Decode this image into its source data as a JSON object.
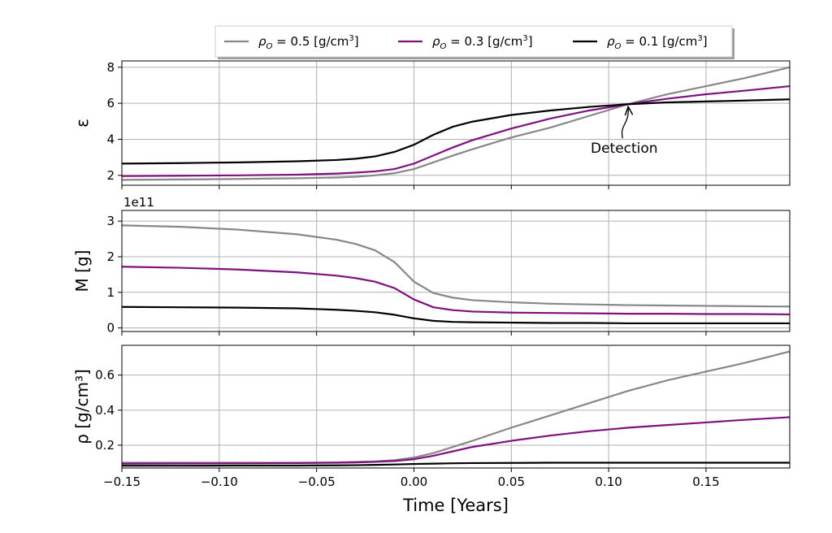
{
  "chart_data": {
    "type": "line",
    "shared_x": {
      "label": "Time [Years]",
      "range": [
        -0.15,
        0.193
      ],
      "ticks": [
        -0.15,
        -0.1,
        -0.05,
        0.0,
        0.05,
        0.1,
        0.15
      ],
      "tick_labels": [
        "−0.15",
        "−0.10",
        "−0.05",
        "0.00",
        "0.05",
        "0.10",
        "0.15"
      ]
    },
    "legend": {
      "placement": "top-center",
      "entries": [
        {
          "series_index": 0,
          "label": "ρ",
          "sub": "O",
          "rest": " = 0.5 [g/cm",
          "sup": "3",
          "close": "]",
          "color": "#878787"
        },
        {
          "series_index": 1,
          "label": "ρ",
          "sub": "O",
          "rest": " = 0.3 [g/cm",
          "sup": "3",
          "close": "]",
          "color": "#800f80"
        },
        {
          "series_index": 2,
          "label": "ρ",
          "sub": "O",
          "rest": " = 0.1 [g/cm",
          "sup": "3",
          "close": "]",
          "color": "#000000"
        }
      ]
    },
    "panels": [
      {
        "ylabel": "ε",
        "ylim": [
          1.45,
          8.35
        ],
        "yticks": [
          2,
          4,
          6,
          8
        ],
        "ytick_labels": [
          "2",
          "4",
          "6",
          "8"
        ],
        "grid": true,
        "annotation": {
          "text": "Detection",
          "point": [
            0.11,
            5.95
          ],
          "text_at": [
            0.108,
            3.25
          ]
        },
        "series": [
          {
            "color": "#878787",
            "x": [
              -0.15,
              -0.12,
              -0.09,
              -0.06,
              -0.04,
              -0.03,
              -0.02,
              -0.01,
              0,
              0.01,
              0.02,
              0.03,
              0.05,
              0.07,
              0.09,
              0.11,
              0.13,
              0.15,
              0.17,
              0.193
            ],
            "y": [
              1.75,
              1.77,
              1.8,
              1.84,
              1.88,
              1.92,
              2.0,
              2.12,
              2.35,
              2.72,
              3.1,
              3.45,
              4.1,
              4.65,
              5.3,
              5.95,
              6.5,
              6.95,
              7.4,
              8.0
            ]
          },
          {
            "color": "#800f80",
            "x": [
              -0.15,
              -0.12,
              -0.09,
              -0.06,
              -0.04,
              -0.03,
              -0.02,
              -0.01,
              0,
              0.01,
              0.02,
              0.03,
              0.05,
              0.07,
              0.09,
              0.11,
              0.13,
              0.15,
              0.17,
              0.193
            ],
            "y": [
              1.96,
              1.98,
              2.0,
              2.04,
              2.1,
              2.15,
              2.22,
              2.35,
              2.65,
              3.1,
              3.55,
              3.95,
              4.6,
              5.15,
              5.6,
              5.95,
              6.25,
              6.5,
              6.7,
              6.95
            ]
          },
          {
            "color": "#000000",
            "x": [
              -0.15,
              -0.12,
              -0.09,
              -0.06,
              -0.04,
              -0.03,
              -0.02,
              -0.01,
              0,
              0.01,
              0.02,
              0.03,
              0.05,
              0.07,
              0.09,
              0.11,
              0.13,
              0.15,
              0.17,
              0.193
            ],
            "y": [
              2.65,
              2.68,
              2.72,
              2.78,
              2.85,
              2.92,
              3.05,
              3.3,
              3.7,
              4.25,
              4.7,
              4.98,
              5.35,
              5.6,
              5.8,
              5.95,
              6.05,
              6.1,
              6.15,
              6.22
            ]
          }
        ]
      },
      {
        "ylabel": "M  [g]",
        "offset_text": "1e11",
        "ylim": [
          -0.1,
          3.3
        ],
        "yticks": [
          0,
          1,
          2,
          3
        ],
        "ytick_labels": [
          "0",
          "1",
          "2",
          "3"
        ],
        "grid": true,
        "series": [
          {
            "color": "#878787",
            "x": [
              -0.15,
              -0.12,
              -0.09,
              -0.06,
              -0.04,
              -0.03,
              -0.02,
              -0.01,
              0,
              0.01,
              0.02,
              0.03,
              0.05,
              0.07,
              0.09,
              0.11,
              0.13,
              0.15,
              0.17,
              0.193
            ],
            "y": [
              2.88,
              2.84,
              2.76,
              2.63,
              2.48,
              2.36,
              2.18,
              1.85,
              1.3,
              0.98,
              0.85,
              0.78,
              0.72,
              0.68,
              0.66,
              0.64,
              0.63,
              0.62,
              0.61,
              0.6
            ]
          },
          {
            "color": "#800f80",
            "x": [
              -0.15,
              -0.12,
              -0.09,
              -0.06,
              -0.04,
              -0.03,
              -0.02,
              -0.01,
              0,
              0.01,
              0.02,
              0.03,
              0.05,
              0.07,
              0.09,
              0.11,
              0.13,
              0.15,
              0.17,
              0.193
            ],
            "y": [
              1.72,
              1.69,
              1.64,
              1.56,
              1.47,
              1.4,
              1.3,
              1.12,
              0.8,
              0.58,
              0.5,
              0.46,
              0.43,
              0.42,
              0.41,
              0.4,
              0.4,
              0.39,
              0.39,
              0.38
            ]
          },
          {
            "color": "#000000",
            "x": [
              -0.15,
              -0.12,
              -0.09,
              -0.06,
              -0.04,
              -0.03,
              -0.02,
              -0.01,
              0,
              0.01,
              0.02,
              0.03,
              0.05,
              0.07,
              0.09,
              0.11,
              0.13,
              0.15,
              0.17,
              0.193
            ],
            "y": [
              0.59,
              0.58,
              0.57,
              0.55,
              0.51,
              0.48,
              0.44,
              0.37,
              0.27,
              0.2,
              0.17,
              0.16,
              0.15,
              0.14,
              0.14,
              0.13,
              0.13,
              0.13,
              0.13,
              0.13
            ]
          }
        ]
      },
      {
        "ylabel": "ρ  [g/cm³]",
        "ylim": [
          0.07,
          0.77
        ],
        "yticks": [
          0.2,
          0.4,
          0.6
        ],
        "ytick_labels": [
          "0.2",
          "0.4",
          "0.6"
        ],
        "grid": true,
        "series": [
          {
            "color": "#878787",
            "x": [
              -0.15,
              -0.12,
              -0.09,
              -0.06,
              -0.04,
              -0.03,
              -0.02,
              -0.01,
              0,
              0.01,
              0.02,
              0.03,
              0.05,
              0.07,
              0.09,
              0.11,
              0.13,
              0.15,
              0.17,
              0.193
            ],
            "y": [
              0.1,
              0.1,
              0.1,
              0.1,
              0.102,
              0.105,
              0.108,
              0.115,
              0.13,
              0.155,
              0.19,
              0.225,
              0.3,
              0.37,
              0.44,
              0.51,
              0.57,
              0.62,
              0.67,
              0.735
            ]
          },
          {
            "color": "#800f80",
            "x": [
              -0.15,
              -0.12,
              -0.09,
              -0.06,
              -0.04,
              -0.03,
              -0.02,
              -0.01,
              0,
              0.01,
              0.02,
              0.03,
              0.05,
              0.07,
              0.09,
              0.11,
              0.13,
              0.15,
              0.17,
              0.193
            ],
            "y": [
              0.095,
              0.096,
              0.097,
              0.098,
              0.1,
              0.102,
              0.105,
              0.11,
              0.12,
              0.14,
              0.165,
              0.19,
              0.225,
              0.255,
              0.28,
              0.3,
              0.315,
              0.33,
              0.345,
              0.36
            ]
          },
          {
            "color": "#000000",
            "x": [
              -0.15,
              -0.12,
              -0.09,
              -0.06,
              -0.04,
              -0.03,
              -0.02,
              -0.01,
              0,
              0.01,
              0.02,
              0.03,
              0.05,
              0.07,
              0.09,
              0.11,
              0.13,
              0.15,
              0.17,
              0.193
            ],
            "y": [
              0.083,
              0.083,
              0.084,
              0.084,
              0.085,
              0.086,
              0.088,
              0.09,
              0.093,
              0.095,
              0.097,
              0.098,
              0.099,
              0.1,
              0.1,
              0.1,
              0.1,
              0.1,
              0.1,
              0.1
            ]
          }
        ]
      }
    ]
  }
}
